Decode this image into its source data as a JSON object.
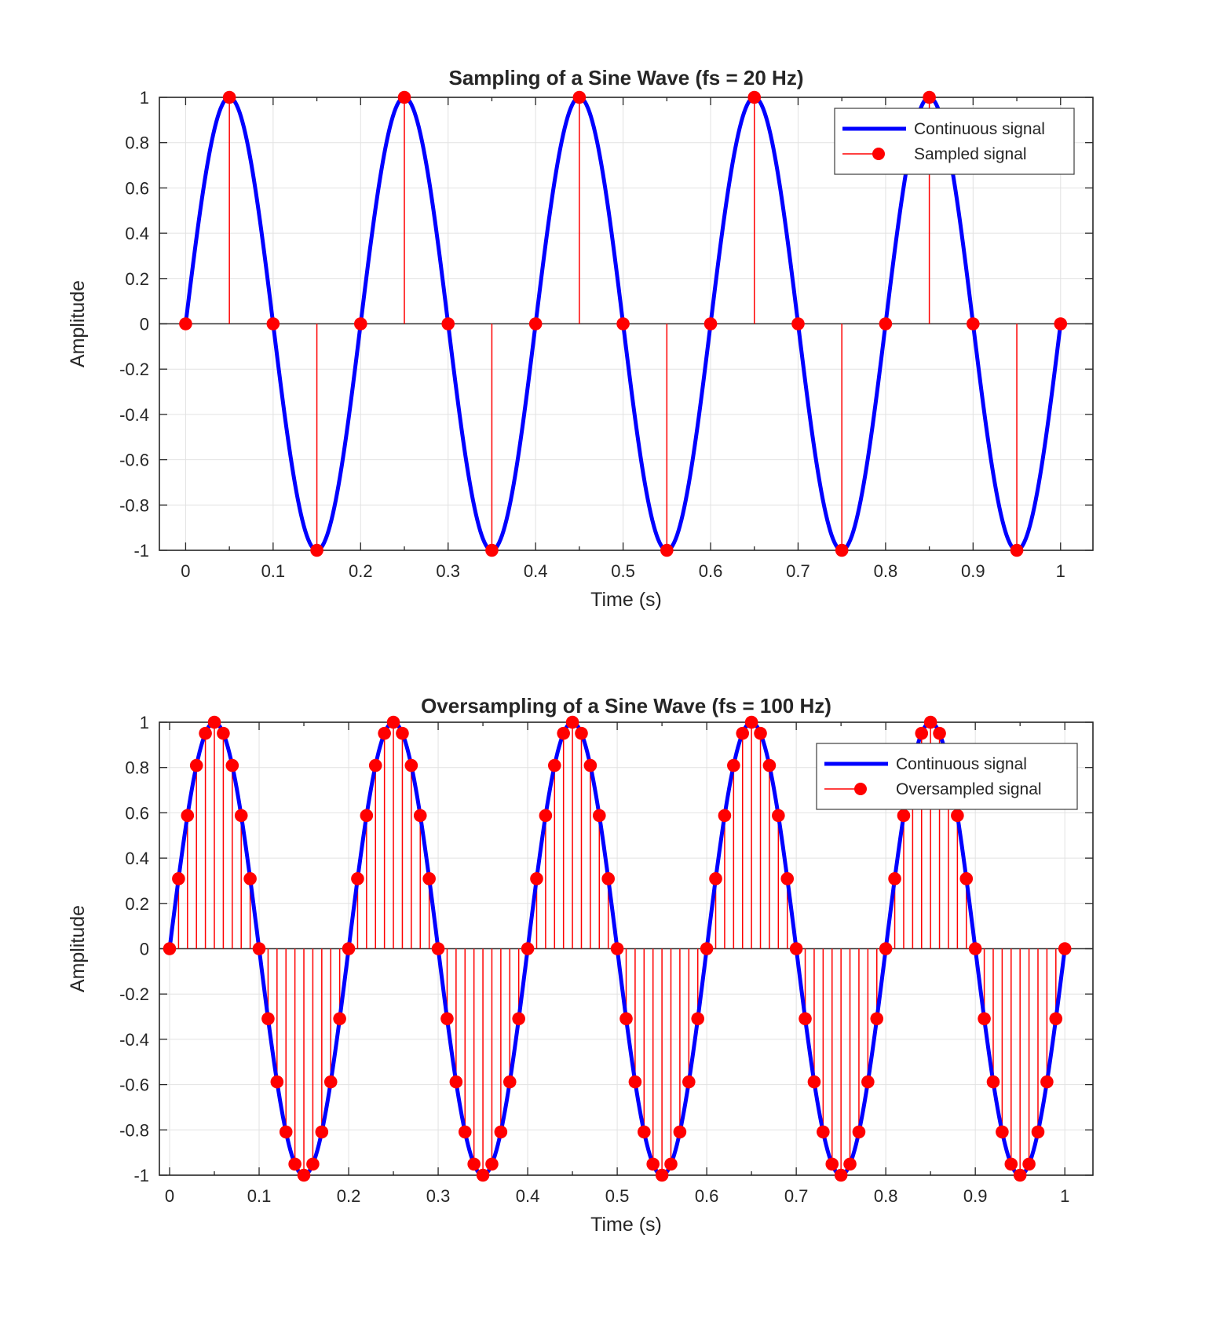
{
  "figure": {
    "background_color": "#ffffff"
  },
  "chart_data": [
    {
      "type": "line",
      "subtype": "continuous sine with stem-sampled points",
      "title": "Sampling of a Sine Wave (fs = 20 Hz)",
      "xlabel": "Time (s)",
      "ylabel": "Amplitude",
      "xlim": [
        -0.03,
        1.037
      ],
      "ylim": [
        -1,
        1
      ],
      "xticks": [
        0,
        0.1,
        0.2,
        0.3,
        0.4,
        0.5,
        0.6,
        0.7,
        0.8,
        0.9,
        1
      ],
      "xtick_labels": [
        "0",
        "0.1",
        "0.2",
        "0.3",
        "0.4",
        "0.5",
        "0.6",
        "0.7",
        "0.8",
        "0.9",
        "1"
      ],
      "xminor_tick_step": 0.05,
      "yticks": [
        -1,
        -0.8,
        -0.6,
        -0.4,
        -0.2,
        0,
        0.2,
        0.4,
        0.6,
        0.8,
        1
      ],
      "ytick_labels": [
        "-1",
        "-0.8",
        "-0.6",
        "-0.4",
        "-0.2",
        "0",
        "0.2",
        "0.4",
        "0.6",
        "0.8",
        "1"
      ],
      "grid": true,
      "legend": {
        "position": "northeast",
        "entries": [
          {
            "label": "Continuous signal",
            "marker": "line",
            "color": "#0000ff"
          },
          {
            "label": "Sampled signal",
            "marker": "stem-dot",
            "color": "#ff0000"
          }
        ]
      },
      "continuous_signal": {
        "shape": "sine",
        "frequency_hz": 5,
        "amplitude": 1,
        "t_start": 0,
        "t_end": 1
      },
      "sampled_signal": {
        "sampling_rate_hz": 20,
        "t": [
          0,
          0.05,
          0.1,
          0.15,
          0.2,
          0.25,
          0.3,
          0.35,
          0.4,
          0.45,
          0.5,
          0.55,
          0.6,
          0.65,
          0.7,
          0.75,
          0.8,
          0.85,
          0.9,
          0.95,
          1
        ],
        "y": [
          0,
          1,
          0,
          -1,
          0,
          1,
          0,
          -1,
          0,
          1,
          0,
          -1,
          0,
          1,
          0,
          -1,
          0,
          1,
          0,
          -1,
          0
        ]
      },
      "colors": {
        "continuous": "#0000ff",
        "sampled": "#ff0000",
        "axis": "#262626",
        "grid": "#e2e2e2",
        "baseline": "#333333",
        "legend_edge": "#3c3c3c"
      }
    },
    {
      "type": "line",
      "subtype": "continuous sine with stem-oversampled points",
      "title": "Oversampling of a Sine Wave (fs = 100 Hz)",
      "xlabel": "Time (s)",
      "ylabel": "Amplitude",
      "xlim": [
        -0.0114,
        1.0314
      ],
      "ylim": [
        -1,
        1
      ],
      "xticks": [
        0,
        0.1,
        0.2,
        0.3,
        0.4,
        0.5,
        0.6,
        0.7,
        0.8,
        0.9,
        1
      ],
      "xtick_labels": [
        "0",
        "0.1",
        "0.2",
        "0.3",
        "0.4",
        "0.5",
        "0.6",
        "0.7",
        "0.8",
        "0.9",
        "1"
      ],
      "xminor_tick_step": 0.05,
      "yticks": [
        -1,
        -0.8,
        -0.6,
        -0.4,
        -0.2,
        0,
        0.2,
        0.4,
        0.6,
        0.8,
        1
      ],
      "ytick_labels": [
        "-1",
        "-0.8",
        "-0.6",
        "-0.4",
        "-0.2",
        "0",
        "0.2",
        "0.4",
        "0.6",
        "0.8",
        "1"
      ],
      "grid": true,
      "legend": {
        "position": "northeast",
        "entries": [
          {
            "label": "Continuous signal",
            "marker": "line",
            "color": "#0000ff"
          },
          {
            "label": "Oversampled signal",
            "marker": "stem-dot",
            "color": "#ff0000"
          }
        ]
      },
      "continuous_signal": {
        "shape": "sine",
        "frequency_hz": 5,
        "amplitude": 1,
        "t_start": 0,
        "t_end": 1
      },
      "sampled_signal": {
        "sampling_rate_hz": 100,
        "t_start": 0,
        "t_step": 0.01,
        "n": 101,
        "y": [
          0,
          0.309,
          0.588,
          0.809,
          0.951,
          1,
          0.951,
          0.809,
          0.588,
          0.309,
          0,
          -0.309,
          -0.588,
          -0.809,
          -0.951,
          -1,
          -0.951,
          -0.809,
          -0.588,
          -0.309,
          0,
          0.309,
          0.588,
          0.809,
          0.951,
          1,
          0.951,
          0.809,
          0.588,
          0.309,
          0,
          -0.309,
          -0.588,
          -0.809,
          -0.951,
          -1,
          -0.951,
          -0.809,
          -0.588,
          -0.309,
          0,
          0.309,
          0.588,
          0.809,
          0.951,
          1,
          0.951,
          0.809,
          0.588,
          0.309,
          0,
          -0.309,
          -0.588,
          -0.809,
          -0.951,
          -1,
          -0.951,
          -0.809,
          -0.588,
          -0.309,
          0,
          0.309,
          0.588,
          0.809,
          0.951,
          1,
          0.951,
          0.809,
          0.588,
          0.309,
          0,
          -0.309,
          -0.588,
          -0.809,
          -0.951,
          -1,
          -0.951,
          -0.809,
          -0.588,
          -0.309,
          0,
          0.309,
          0.588,
          0.809,
          0.951,
          1,
          0.951,
          0.809,
          0.588,
          0.309,
          0,
          -0.309,
          -0.588,
          -0.809,
          -0.951,
          -1,
          -0.951,
          -0.809,
          -0.588,
          -0.309,
          0
        ]
      },
      "colors": {
        "continuous": "#0000ff",
        "sampled": "#ff0000",
        "axis": "#262626",
        "grid": "#e2e2e2",
        "baseline": "#333333",
        "legend_edge": "#3c3c3c"
      }
    }
  ]
}
